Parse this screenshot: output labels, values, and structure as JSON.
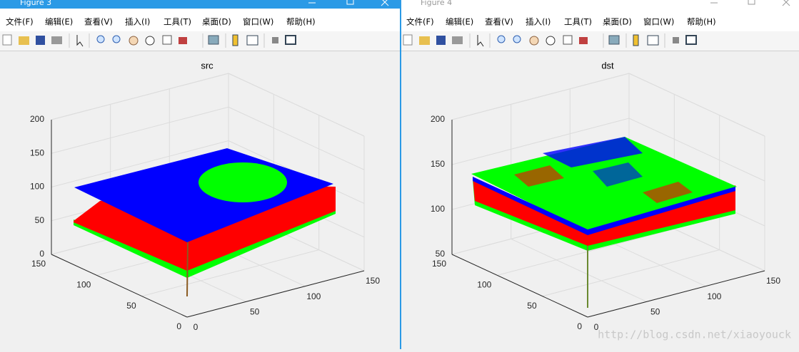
{
  "windows": [
    {
      "title": "Figure 3",
      "menu": [
        "文件(F)",
        "编辑(E)",
        "查看(V)",
        "插入(I)",
        "工具(T)",
        "桌面(D)",
        "窗口(W)",
        "帮助(H)"
      ],
      "plot": {
        "title": "src",
        "xticks": [
          0,
          50,
          100,
          150
        ],
        "yticks": [
          0,
          50,
          100,
          150
        ],
        "zticks": [
          0,
          50,
          100,
          150,
          200
        ]
      }
    },
    {
      "title": "Figure 4",
      "menu": [
        "文件(F)",
        "编辑(E)",
        "查看(V)",
        "插入(I)",
        "工具(T)",
        "桌面(D)",
        "窗口(W)",
        "帮助(H)"
      ],
      "plot": {
        "title": "dst",
        "xticks": [
          0,
          50,
          100,
          150
        ],
        "yticks": [
          0,
          50,
          100,
          150
        ],
        "zticks": [
          50,
          100,
          150,
          200
        ]
      }
    }
  ],
  "watermark": "http://blog.csdn.net/xiaoyouck"
}
